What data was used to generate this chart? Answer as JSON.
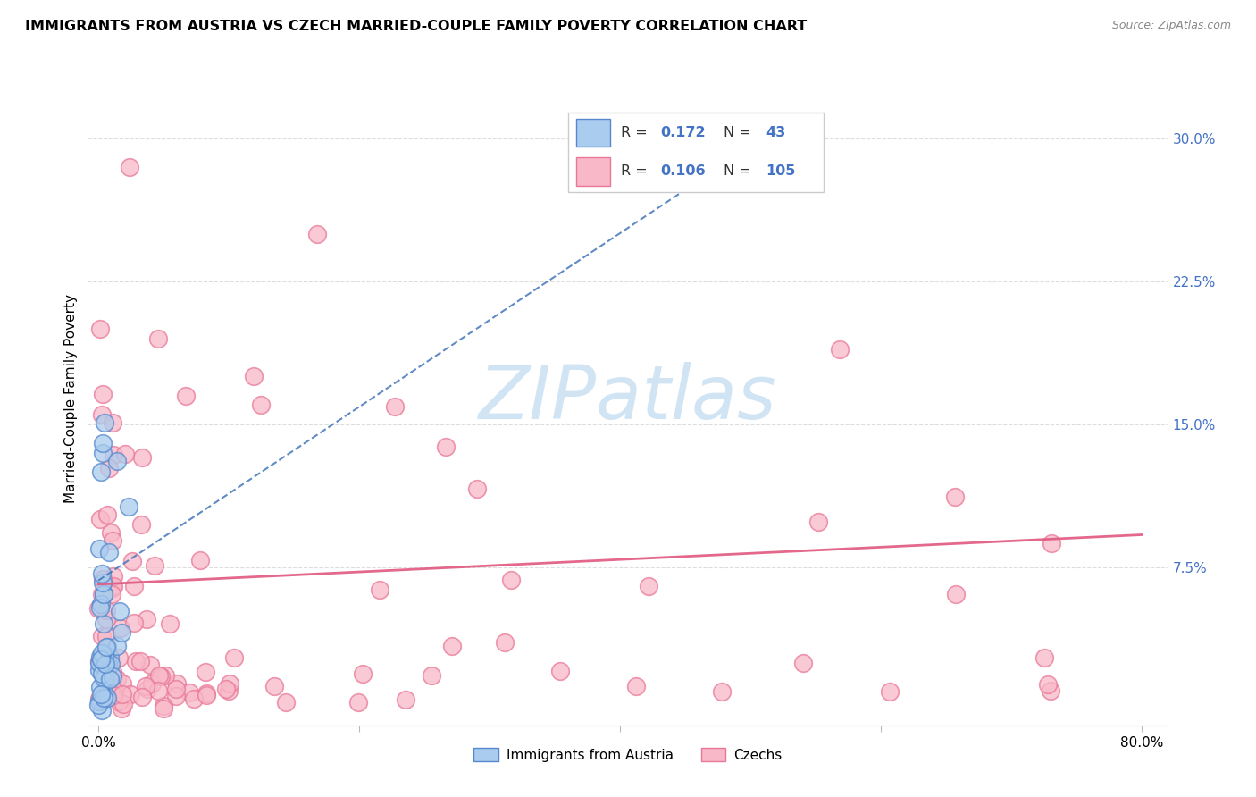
{
  "title": "IMMIGRANTS FROM AUSTRIA VS CZECH MARRIED-COUPLE FAMILY POVERTY CORRELATION CHART",
  "source": "Source: ZipAtlas.com",
  "ylabel": "Married-Couple Family Poverty",
  "R1": 0.172,
  "N1": 43,
  "R2": 0.106,
  "N2": 105,
  "color_austria_fill": "#aaccee",
  "color_austria_edge": "#5588cc",
  "color_austria_line": "#4477bb",
  "color_czech_fill": "#f8b8c8",
  "color_czech_edge": "#e87898",
  "color_czech_line": "#e05880",
  "color_right_axis": "#4472c4",
  "legend_label1": "Immigrants from Austria",
  "legend_label2": "Czechs",
  "watermark_color": "#d0e4f4",
  "grid_color": "#dddddd"
}
